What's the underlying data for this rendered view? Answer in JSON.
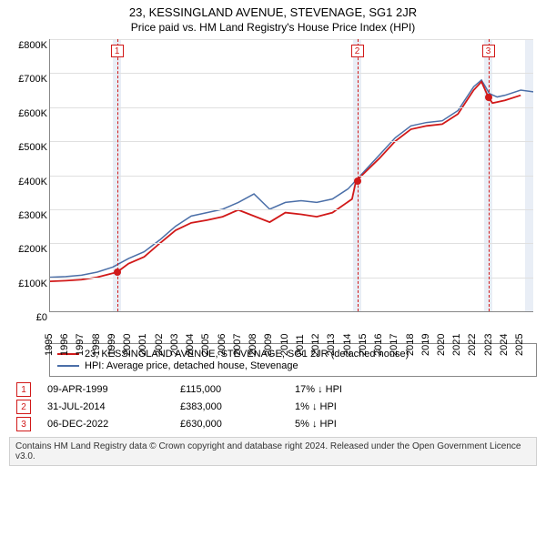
{
  "title": "23, KESSINGLAND AVENUE, STEVENAGE, SG1 2JR",
  "subtitle": "Price paid vs. HM Land Registry's House Price Index (HPI)",
  "chart": {
    "type": "line",
    "xlim": [
      1995,
      2025.8
    ],
    "ylim": [
      0,
      800000
    ],
    "ytick_step": 100000,
    "y_ticks": [
      "£0",
      "£100K",
      "£200K",
      "£300K",
      "£400K",
      "£500K",
      "£600K",
      "£700K",
      "£800K"
    ],
    "x_ticks": [
      1995,
      1996,
      1997,
      1998,
      1999,
      2000,
      2001,
      2002,
      2003,
      2004,
      2005,
      2006,
      2007,
      2008,
      2009,
      2010,
      2011,
      2012,
      2013,
      2014,
      2015,
      2016,
      2017,
      2018,
      2019,
      2020,
      2021,
      2022,
      2023,
      2024,
      2025
    ],
    "background_color": "#ffffff",
    "grid_color": "#e0e0e0",
    "axis_color": "#888888",
    "band_color": "#e9eef6",
    "series": [
      {
        "name": "hpi",
        "color": "#4b6fa8",
        "width": 1.5,
        "points": [
          [
            1995,
            100000
          ],
          [
            1996,
            102000
          ],
          [
            1997,
            106000
          ],
          [
            1998,
            115000
          ],
          [
            1999,
            130000
          ],
          [
            2000,
            155000
          ],
          [
            2001,
            175000
          ],
          [
            2002,
            210000
          ],
          [
            2003,
            250000
          ],
          [
            2004,
            280000
          ],
          [
            2005,
            290000
          ],
          [
            2006,
            300000
          ],
          [
            2007,
            320000
          ],
          [
            2008,
            345000
          ],
          [
            2009,
            300000
          ],
          [
            2010,
            320000
          ],
          [
            2011,
            325000
          ],
          [
            2012,
            320000
          ],
          [
            2013,
            330000
          ],
          [
            2014,
            360000
          ],
          [
            2015,
            410000
          ],
          [
            2016,
            460000
          ],
          [
            2017,
            510000
          ],
          [
            2018,
            545000
          ],
          [
            2019,
            555000
          ],
          [
            2020,
            560000
          ],
          [
            2021,
            590000
          ],
          [
            2022,
            660000
          ],
          [
            2022.5,
            680000
          ],
          [
            2023,
            640000
          ],
          [
            2023.5,
            630000
          ],
          [
            2024,
            635000
          ],
          [
            2025,
            650000
          ],
          [
            2025.8,
            645000
          ]
        ]
      },
      {
        "name": "price_paid",
        "color": "#d11919",
        "width": 1.8,
        "points": [
          [
            1995,
            88000
          ],
          [
            1996,
            90000
          ],
          [
            1997,
            93000
          ],
          [
            1998,
            100000
          ],
          [
            1999.27,
            115000
          ],
          [
            2000,
            140000
          ],
          [
            2001,
            160000
          ],
          [
            2002,
            200000
          ],
          [
            2003,
            238000
          ],
          [
            2004,
            260000
          ],
          [
            2005,
            268000
          ],
          [
            2006,
            278000
          ],
          [
            2007,
            298000
          ],
          [
            2008,
            280000
          ],
          [
            2009,
            262000
          ],
          [
            2010,
            290000
          ],
          [
            2011,
            285000
          ],
          [
            2012,
            278000
          ],
          [
            2013,
            290000
          ],
          [
            2014.25,
            330000
          ],
          [
            2014.5,
            383000
          ],
          [
            2015,
            405000
          ],
          [
            2016,
            450000
          ],
          [
            2017,
            500000
          ],
          [
            2018,
            535000
          ],
          [
            2019,
            545000
          ],
          [
            2020,
            550000
          ],
          [
            2021,
            580000
          ],
          [
            2022,
            650000
          ],
          [
            2022.5,
            675000
          ],
          [
            2022.93,
            630000
          ],
          [
            2023.2,
            612000
          ],
          [
            2024,
            620000
          ],
          [
            2025,
            635000
          ]
        ]
      }
    ],
    "event_markers": [
      {
        "n": "1",
        "x": 1999.27,
        "y": 115000,
        "color": "#d11919"
      },
      {
        "n": "2",
        "x": 2014.58,
        "y": 383000,
        "color": "#d11919"
      },
      {
        "n": "3",
        "x": 2022.93,
        "y": 630000,
        "color": "#d11919"
      }
    ],
    "bands": [
      {
        "from": 1999,
        "to": 1999.55
      },
      {
        "from": 2014.3,
        "to": 2014.85
      },
      {
        "from": 2022.65,
        "to": 2023.2
      },
      {
        "from": 2025.3,
        "to": 2025.8
      }
    ]
  },
  "legend": {
    "rows": [
      {
        "color": "#d11919",
        "label": "23, KESSINGLAND AVENUE, STEVENAGE, SG1 2JR (detached house)"
      },
      {
        "color": "#4b6fa8",
        "label": "HPI: Average price, detached house, Stevenage"
      }
    ]
  },
  "events": [
    {
      "n": "1",
      "date": "09-APR-1999",
      "price": "£115,000",
      "delta": "17% ↓ HPI",
      "color": "#d11919"
    },
    {
      "n": "2",
      "date": "31-JUL-2014",
      "price": "£383,000",
      "delta": "1% ↓ HPI",
      "color": "#d11919"
    },
    {
      "n": "3",
      "date": "06-DEC-2022",
      "price": "£630,000",
      "delta": "5% ↓ HPI",
      "color": "#d11919"
    }
  ],
  "footer": "Contains HM Land Registry data © Crown copyright and database right 2024. Released under the Open Government Licence v3.0."
}
